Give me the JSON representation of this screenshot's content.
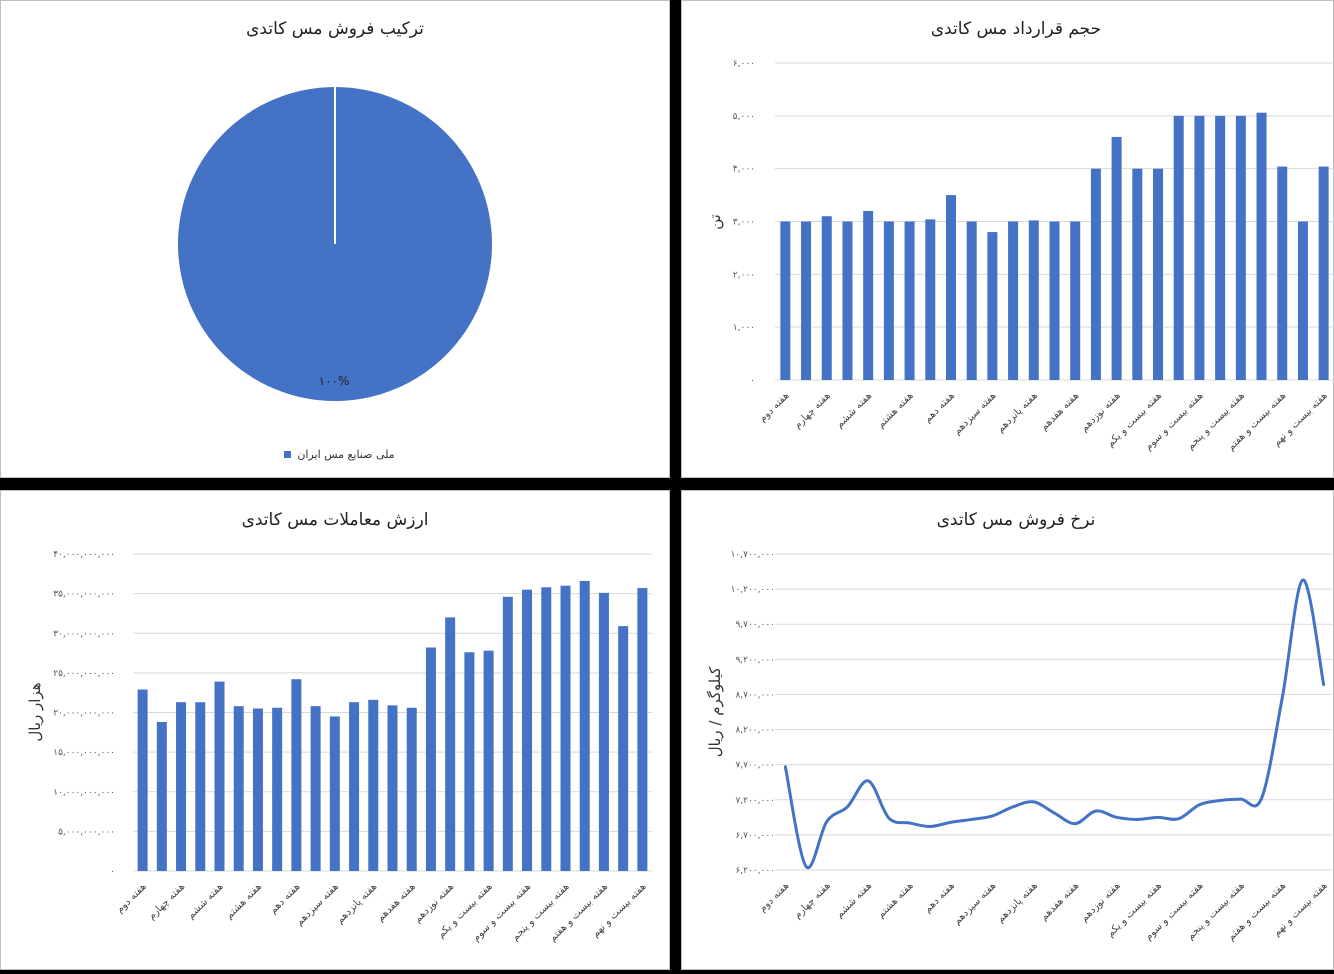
{
  "colors": {
    "bar": "#4472C4",
    "line": "#4472C4",
    "pie": "#4472C4",
    "grid": "#d9d9d9"
  },
  "chart_data": [
    {
      "id": "pie",
      "type": "pie",
      "title": "ترکیب فروش مس کاتدی",
      "slices": [
        {
          "name": "ملی صنایع مس ایران",
          "value": 100,
          "label": "۱۰۰%"
        }
      ],
      "legend": "bottom"
    },
    {
      "id": "volume",
      "type": "bar",
      "title": "حجم قرارداد مس کاتدی",
      "ylabel": "تن",
      "ylim": [
        0,
        6000
      ],
      "yticks": [
        0,
        1000,
        2000,
        3000,
        4000,
        5000,
        6000
      ],
      "ytick_labels": [
        "۰",
        "۱,۰۰۰",
        "۲,۰۰۰",
        "۳,۰۰۰",
        "۴,۰۰۰",
        "۵,۰۰۰",
        "۶,۰۰۰"
      ],
      "grid": true,
      "categories": [
        "هفته دوم",
        "",
        "هفته چهارم",
        "",
        "هفته ششم",
        "",
        "هفته هشتم",
        "",
        "هفته دهم",
        "",
        "هفته سیزدهم",
        "",
        "هفته پانزدهم",
        "",
        "هفته هفدهم",
        "",
        "هفته نوزدهم",
        "",
        "هفته بیست و یکم",
        "",
        "هفته بیست و سوم",
        "",
        "هفته بیست و پنجم",
        "",
        "هفته بیست و هفتم",
        "",
        "هفته بیست و نهم"
      ],
      "values": [
        3000,
        3000,
        3100,
        3000,
        3200,
        3000,
        3000,
        3040,
        3500,
        3000,
        2800,
        3000,
        3020,
        3000,
        3000,
        4000,
        4600,
        4000,
        4000,
        5000,
        5000,
        5000,
        5000,
        5060,
        4040,
        3000,
        4040
      ]
    },
    {
      "id": "value",
      "type": "bar",
      "title": "ارزش معاملات مس کاتدی",
      "ylabel": "هزار ریال",
      "ylim": [
        0,
        40000000000
      ],
      "yticks": [
        0,
        5000000000,
        10000000000,
        15000000000,
        20000000000,
        25000000000,
        30000000000,
        35000000000,
        40000000000
      ],
      "ytick_labels": [
        "۰",
        "۵,۰۰۰,۰۰۰,۰۰۰",
        "۱۰,۰۰۰,۰۰۰,۰۰۰",
        "۱۵,۰۰۰,۰۰۰,۰۰۰",
        "۲۰,۰۰۰,۰۰۰,۰۰۰",
        "۲۵,۰۰۰,۰۰۰,۰۰۰",
        "۳۰,۰۰۰,۰۰۰,۰۰۰",
        "۳۵,۰۰۰,۰۰۰,۰۰۰",
        "۴۰,۰۰۰,۰۰۰,۰۰۰"
      ],
      "grid": true,
      "categories": [
        "هفته دوم",
        "",
        "هفته چهارم",
        "",
        "هفته ششم",
        "",
        "هفته هشتم",
        "",
        "هفته دهم",
        "",
        "هفته سیزدهم",
        "",
        "هفته پانزدهم",
        "",
        "هفته هفدهم",
        "",
        "هفته نوزدهم",
        "",
        "هفته بیست و یکم",
        "",
        "هفته بیست و سوم",
        "",
        "هفته بیست و پنجم",
        "",
        "هفته بیست و هفتم",
        "",
        "هفته بیست و نهم"
      ],
      "values": [
        22900000000,
        18800000000,
        21300000000,
        21300000000,
        23900000000,
        20800000000,
        20500000000,
        20600000000,
        24200000000,
        20800000000,
        19500000000,
        21300000000,
        21600000000,
        20900000000,
        20600000000,
        28200000000,
        32000000000,
        27600000000,
        27800000000,
        34600000000,
        35500000000,
        35800000000,
        36000000000,
        36600000000,
        35100000000,
        30900000000,
        35700000000
      ]
    },
    {
      "id": "price",
      "type": "line",
      "title": "نرخ فروش مس کاتدی",
      "ylabel": "کیلوگرم / ریال",
      "ylim": [
        6200000,
        10700000
      ],
      "yticks": [
        6200000,
        6700000,
        7200000,
        7700000,
        8200000,
        8700000,
        9200000,
        9700000,
        10200000,
        10700000
      ],
      "ytick_labels": [
        "۶,۲۰۰,۰۰۰",
        "۶,۷۰۰,۰۰۰",
        "۷,۲۰۰,۰۰۰",
        "۷,۷۰۰,۰۰۰",
        "۸,۲۰۰,۰۰۰",
        "۸,۷۰۰,۰۰۰",
        "۹,۲۰۰,۰۰۰",
        "۹,۷۰۰,۰۰۰",
        "۱۰,۲۰۰,۰۰۰",
        "۱۰,۷۰۰,۰۰۰"
      ],
      "grid": true,
      "categories": [
        "هفته دوم",
        "",
        "هفته چهارم",
        "",
        "هفته ششم",
        "",
        "هفته هشتم",
        "",
        "هفته دهم",
        "",
        "هفته سیزدهم",
        "",
        "هفته پانزدهم",
        "",
        "هفته هفدهم",
        "",
        "هفته نوزدهم",
        "",
        "هفته بیست و یکم",
        "",
        "هفته بیست و سوم",
        "",
        "هفته بیست و پنجم",
        "",
        "هفته بیست و هفتم",
        "",
        "هفته بیست و نهم"
      ],
      "values": [
        7670000,
        6250000,
        6890000,
        7100000,
        7470000,
        6940000,
        6870000,
        6820000,
        6880000,
        6920000,
        6970000,
        7100000,
        7170000,
        7010000,
        6860000,
        7040000,
        6950000,
        6920000,
        6950000,
        6930000,
        7130000,
        7190000,
        7210000,
        7220000,
        8650000,
        10330000,
        8840000
      ]
    }
  ]
}
